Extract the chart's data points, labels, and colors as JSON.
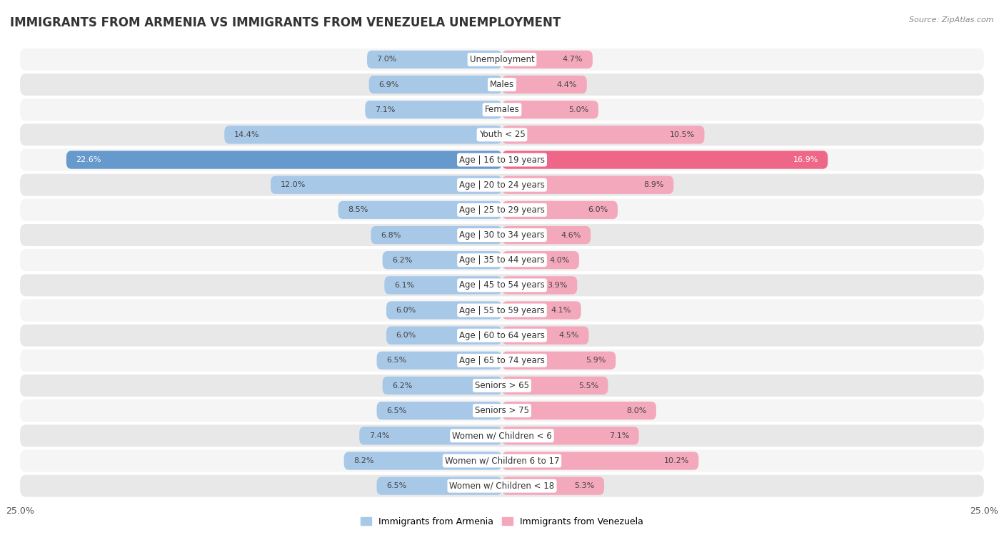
{
  "title": "IMMIGRANTS FROM ARMENIA VS IMMIGRANTS FROM VENEZUELA UNEMPLOYMENT",
  "source": "Source: ZipAtlas.com",
  "categories": [
    "Unemployment",
    "Males",
    "Females",
    "Youth < 25",
    "Age | 16 to 19 years",
    "Age | 20 to 24 years",
    "Age | 25 to 29 years",
    "Age | 30 to 34 years",
    "Age | 35 to 44 years",
    "Age | 45 to 54 years",
    "Age | 55 to 59 years",
    "Age | 60 to 64 years",
    "Age | 65 to 74 years",
    "Seniors > 65",
    "Seniors > 75",
    "Women w/ Children < 6",
    "Women w/ Children 6 to 17",
    "Women w/ Children < 18"
  ],
  "armenia_values": [
    7.0,
    6.9,
    7.1,
    14.4,
    22.6,
    12.0,
    8.5,
    6.8,
    6.2,
    6.1,
    6.0,
    6.0,
    6.5,
    6.2,
    6.5,
    7.4,
    8.2,
    6.5
  ],
  "venezuela_values": [
    4.7,
    4.4,
    5.0,
    10.5,
    16.9,
    8.9,
    6.0,
    4.6,
    4.0,
    3.9,
    4.1,
    4.5,
    5.9,
    5.5,
    8.0,
    7.1,
    10.2,
    5.3
  ],
  "armenia_color": "#a8c8e8",
  "venezuela_color": "#f4a8bc",
  "armenia_highlight_color": "#6699cc",
  "venezuela_highlight_color": "#ee6688",
  "background_color": "#ffffff",
  "row_color_light": "#f5f5f5",
  "row_color_dark": "#e8e8e8",
  "xlim": 25.0,
  "legend_armenia": "Immigrants from Armenia",
  "legend_venezuela": "Immigrants from Venezuela",
  "title_fontsize": 12,
  "label_fontsize": 8.5,
  "value_fontsize": 8
}
